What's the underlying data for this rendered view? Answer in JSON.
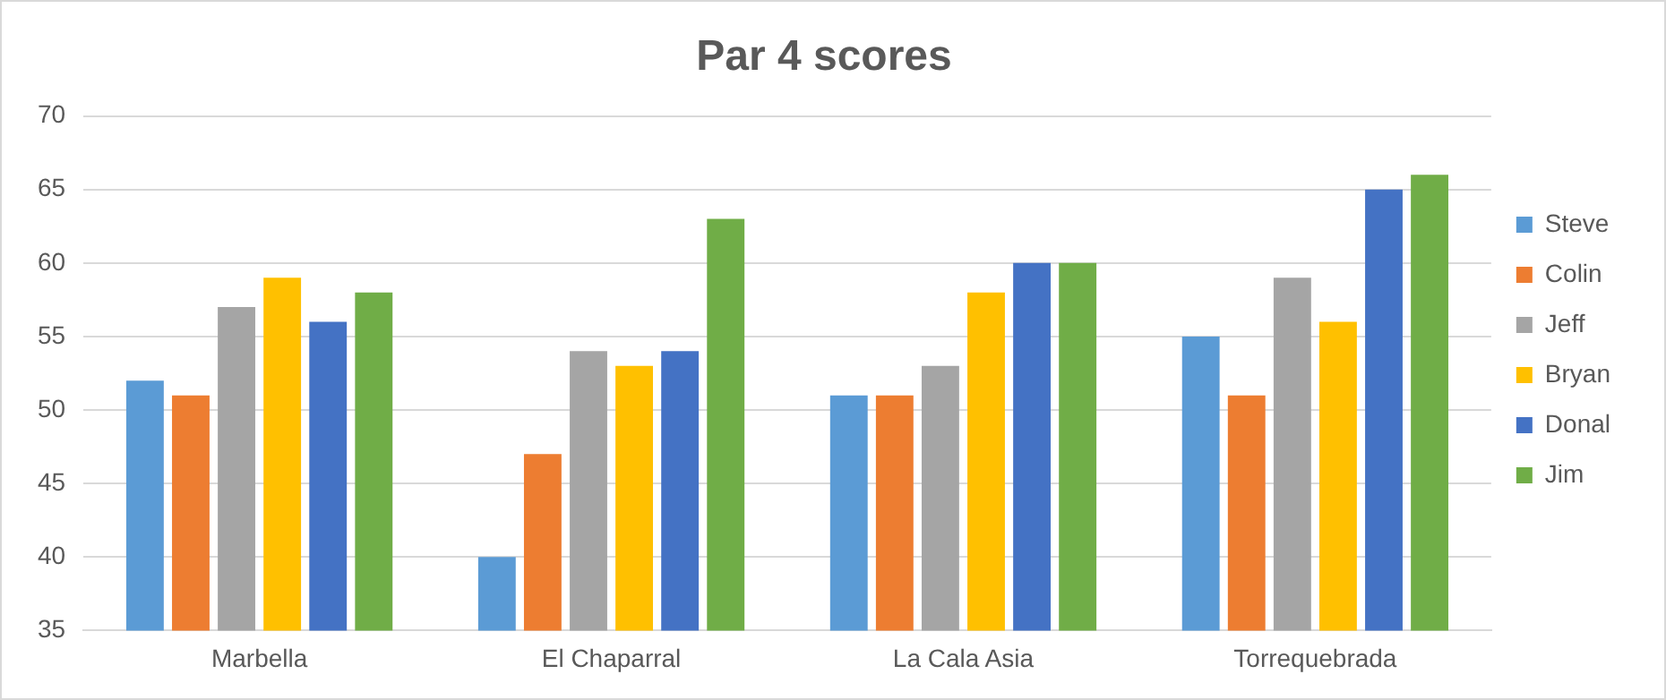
{
  "chart_data": {
    "type": "bar",
    "title": "Par 4 scores",
    "categories": [
      "Marbella",
      "El Chaparral",
      "La Cala Asia",
      "Torrequebrada"
    ],
    "series": [
      {
        "name": "Steve",
        "color": "#5b9bd5",
        "values": [
          52,
          40,
          51,
          55
        ]
      },
      {
        "name": "Colin",
        "color": "#ed7d31",
        "values": [
          51,
          47,
          51,
          51
        ]
      },
      {
        "name": "Jeff",
        "color": "#a5a5a5",
        "values": [
          57,
          54,
          53,
          59
        ]
      },
      {
        "name": "Bryan",
        "color": "#ffc000",
        "values": [
          59,
          53,
          58,
          56
        ]
      },
      {
        "name": "Donal",
        "color": "#4472c4",
        "values": [
          56,
          54,
          60,
          65
        ]
      },
      {
        "name": "Jim",
        "color": "#70ad47",
        "values": [
          58,
          63,
          60,
          66
        ]
      }
    ],
    "ylim": [
      35,
      70
    ],
    "yticks": [
      35,
      40,
      45,
      50,
      55,
      60,
      65,
      70
    ],
    "grid": "y",
    "legend": "right"
  }
}
